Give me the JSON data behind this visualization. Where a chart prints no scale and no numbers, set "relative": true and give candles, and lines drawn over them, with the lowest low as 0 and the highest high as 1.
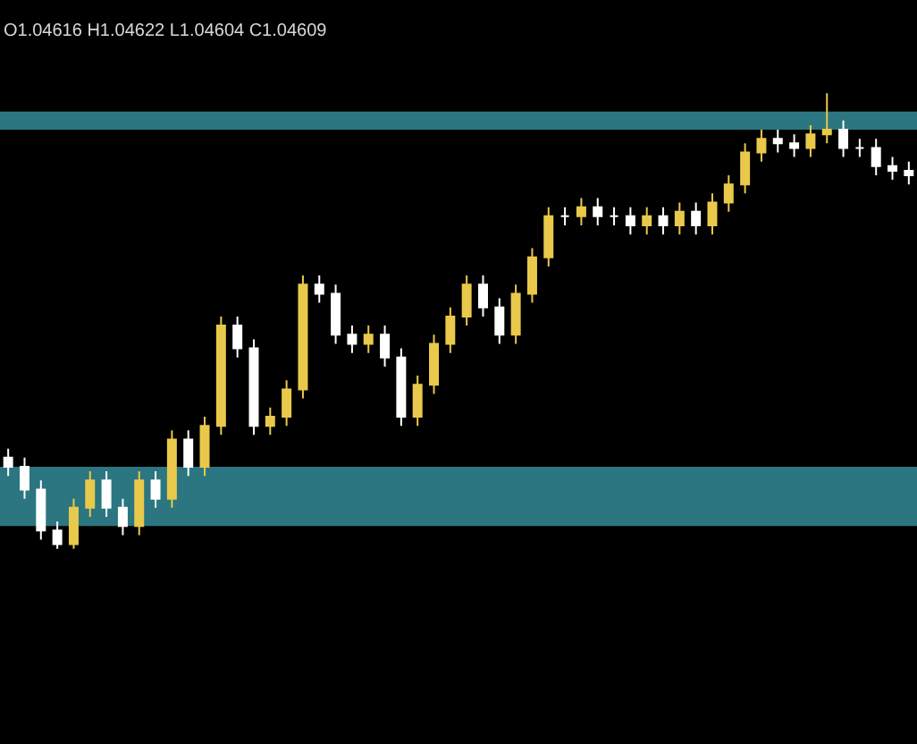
{
  "chart_data": {
    "type": "candlestick",
    "relative": true,
    "grid": false,
    "annotations": [
      "O1.04616 H1.04622 L1.04604 C1.04609"
    ],
    "categories": [
      null,
      null,
      null,
      null,
      null,
      null,
      null,
      null,
      null,
      null,
      null,
      null,
      null,
      null,
      null,
      null,
      null,
      null,
      null,
      null,
      null,
      null,
      null,
      null,
      null,
      null,
      null,
      null,
      null,
      null,
      null,
      null,
      null,
      null,
      null,
      null,
      null,
      null,
      null,
      null,
      null,
      null,
      null,
      null,
      null,
      null,
      null,
      null,
      null,
      null,
      null,
      null,
      null,
      null,
      null,
      null
    ],
    "ohlc": [
      [
        0.2,
        0.22,
        0.16,
        0.18
      ],
      [
        0.18,
        0.2,
        0.11,
        0.13
      ],
      [
        0.13,
        0.15,
        0.02,
        0.04
      ],
      [
        0.04,
        0.06,
        0.0,
        0.01
      ],
      [
        0.01,
        0.11,
        0.0,
        0.09
      ],
      [
        0.09,
        0.17,
        0.07,
        0.15
      ],
      [
        0.15,
        0.17,
        0.07,
        0.09
      ],
      [
        0.09,
        0.11,
        0.03,
        0.05
      ],
      [
        0.05,
        0.17,
        0.03,
        0.15
      ],
      [
        0.15,
        0.17,
        0.09,
        0.11
      ],
      [
        0.11,
        0.26,
        0.09,
        0.24
      ],
      [
        0.24,
        0.26,
        0.16,
        0.18
      ],
      [
        0.18,
        0.29,
        0.16,
        0.27
      ],
      [
        0.27,
        0.51,
        0.25,
        0.49
      ],
      [
        0.49,
        0.51,
        0.42,
        0.44
      ],
      [
        0.44,
        0.46,
        0.25,
        0.27
      ],
      [
        0.27,
        0.31,
        0.25,
        0.29
      ],
      [
        0.29,
        0.37,
        0.27,
        0.35
      ],
      [
        0.35,
        0.6,
        0.33,
        0.58
      ],
      [
        0.58,
        0.6,
        0.54,
        0.56
      ],
      [
        0.56,
        0.58,
        0.45,
        0.47
      ],
      [
        0.47,
        0.49,
        0.43,
        0.45
      ],
      [
        0.45,
        0.49,
        0.43,
        0.47
      ],
      [
        0.47,
        0.49,
        0.4,
        0.42
      ],
      [
        0.42,
        0.44,
        0.27,
        0.29
      ],
      [
        0.29,
        0.38,
        0.27,
        0.36
      ],
      [
        0.36,
        0.47,
        0.34,
        0.45
      ],
      [
        0.45,
        0.53,
        0.43,
        0.51
      ],
      [
        0.51,
        0.6,
        0.49,
        0.58
      ],
      [
        0.58,
        0.6,
        0.51,
        0.53
      ],
      [
        0.53,
        0.55,
        0.45,
        0.47
      ],
      [
        0.47,
        0.58,
        0.45,
        0.56
      ],
      [
        0.56,
        0.66,
        0.54,
        0.64
      ],
      [
        0.64,
        0.75,
        0.62,
        0.73
      ],
      [
        0.73,
        0.75,
        0.71,
        0.73
      ],
      [
        0.73,
        0.77,
        0.71,
        0.75
      ],
      [
        0.75,
        0.77,
        0.71,
        0.73
      ],
      [
        0.73,
        0.75,
        0.71,
        0.73
      ],
      [
        0.73,
        0.75,
        0.69,
        0.71
      ],
      [
        0.71,
        0.75,
        0.69,
        0.73
      ],
      [
        0.73,
        0.75,
        0.69,
        0.71
      ],
      [
        0.71,
        0.76,
        0.69,
        0.74
      ],
      [
        0.74,
        0.76,
        0.69,
        0.71
      ],
      [
        0.71,
        0.78,
        0.69,
        0.76
      ],
      [
        0.76,
        0.82,
        0.74,
        0.8
      ],
      [
        0.8,
        0.89,
        0.78,
        0.87
      ],
      [
        0.87,
        0.92,
        0.85,
        0.9
      ],
      [
        0.9,
        0.92,
        0.87,
        0.89
      ],
      [
        0.89,
        0.91,
        0.86,
        0.88
      ],
      [
        0.88,
        0.93,
        0.86,
        0.91
      ],
      [
        0.91,
        1.0,
        0.89,
        0.92
      ],
      [
        0.92,
        0.94,
        0.86,
        0.88
      ],
      [
        0.88,
        0.9,
        0.86,
        0.88
      ],
      [
        0.88,
        0.9,
        0.82,
        0.84
      ],
      [
        0.84,
        0.86,
        0.81,
        0.83
      ],
      [
        0.83,
        0.85,
        0.8,
        0.82
      ]
    ],
    "colors": [
      "#ffffff",
      "#ffffff",
      "#ffffff",
      "#ffffff",
      "#e9c94b",
      "#e9c94b",
      "#ffffff",
      "#ffffff",
      "#e9c94b",
      "#ffffff",
      "#e9c94b",
      "#ffffff",
      "#e9c94b",
      "#e9c94b",
      "#ffffff",
      "#ffffff",
      "#e9c94b",
      "#e9c94b",
      "#e9c94b",
      "#ffffff",
      "#ffffff",
      "#ffffff",
      "#e9c94b",
      "#ffffff",
      "#ffffff",
      "#e9c94b",
      "#e9c94b",
      "#e9c94b",
      "#e9c94b",
      "#ffffff",
      "#ffffff",
      "#e9c94b",
      "#e9c94b",
      "#e9c94b",
      "#ffffff",
      "#e9c94b",
      "#ffffff",
      "#ffffff",
      "#ffffff",
      "#e9c94b",
      "#ffffff",
      "#e9c94b",
      "#ffffff",
      "#e9c94b",
      "#e9c94b",
      "#e9c94b",
      "#e9c94b",
      "#ffffff",
      "#ffffff",
      "#e9c94b",
      "#e9c94b",
      "#ffffff",
      "#ffffff",
      "#ffffff",
      "#ffffff",
      "#ffffff"
    ],
    "bands": [
      {
        "axis": "y",
        "from": 0.92,
        "to": 0.96,
        "color": "#2b7680"
      },
      {
        "axis": "y",
        "from": 0.05,
        "to": 0.18,
        "color": "#2b7680"
      }
    ]
  }
}
